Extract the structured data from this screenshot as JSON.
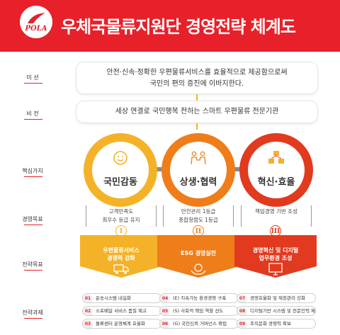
{
  "header": {
    "logo_text": "POLA",
    "title": "우체국물류지원단 경영전략 체계도"
  },
  "labels": {
    "mission": "미   션",
    "vision": "비   전",
    "core_values": "핵심가치",
    "management_goals": "경영목표",
    "strategic_goals": "전략목표",
    "strategic_tasks": "전략과제"
  },
  "mission": {
    "line1": "안전·신속·정확한 우편물류서비스를 효율적으로 제공함으로써",
    "line2": "국민의 편의 증진에 이바지한다."
  },
  "vision": "세상 연결로 국민행복 전하는 스마트 우편물류 전문기관",
  "core_values": [
    {
      "label": "국민감동",
      "icon": "smile-icon"
    },
    {
      "label": "상생·협력",
      "icon": "people-icon"
    },
    {
      "label": "혁신·효율",
      "icon": "cubes-icon"
    }
  ],
  "management_goals": [
    {
      "line1": "고객만족도",
      "line2": "최우수 등급 유지"
    },
    {
      "line1": "안전관리 1등급",
      "line2": "종합청렴도 1등급"
    },
    {
      "line1": "책임경영 기반 조성",
      "line2": ""
    }
  ],
  "strategic_goals": [
    {
      "numeral": "I",
      "line1": "우편물류서비스",
      "line2": "경쟁력 강화"
    },
    {
      "numeral": "II",
      "line1": "ESG 경영실천",
      "line2": ""
    },
    {
      "numeral": "III",
      "line1": "경영혁신 및 디지털",
      "line2": "업무환경 조성"
    }
  ],
  "strategic_tasks": [
    [
      {
        "num": "01",
        "label": "운송시스템 내실화"
      },
      {
        "num": "02",
        "label": "소포배달 서비스 품질 제고"
      },
      {
        "num": "03",
        "label": "물류센터 운영체계 효율화"
      }
    ],
    [
      {
        "num": "04",
        "label": "(E) 지속가능 환경경영 구축"
      },
      {
        "num": "05",
        "label": "(S) 사회적 책임 역할 선도"
      },
      {
        "num": "06",
        "label": "(G) 국민신뢰 거버넌스 확립"
      }
    ],
    [
      {
        "num": "07",
        "label": "경영효율화 및 재정관리 강화"
      },
      {
        "num": "08",
        "label": "디지털기반 시스템 및 전문인력 제고"
      },
      {
        "num": "09",
        "label": "조직문화 경쟁력 확보"
      }
    ]
  ],
  "colors": {
    "brand_red": "#e8202a",
    "amber": "#f4b228",
    "orange": "#ee7d1a",
    "deep_orange": "#e8501e",
    "red_orange": "#e23a1f"
  }
}
